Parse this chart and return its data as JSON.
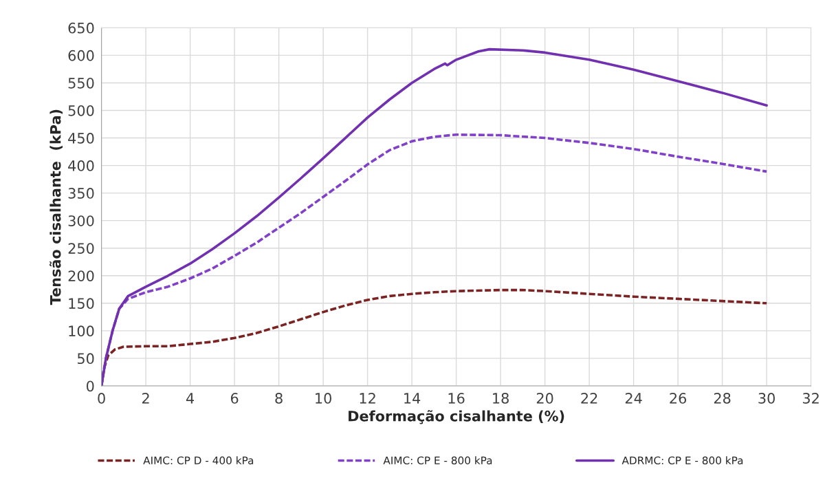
{
  "chart_data": {
    "type": "line",
    "xlabel": "Deformação cisalhante (%)",
    "ylabel": "Tensão cisalhante  (kPa)",
    "xlim": [
      0,
      32
    ],
    "xticks": [
      0,
      2,
      4,
      6,
      8,
      10,
      12,
      14,
      16,
      18,
      20,
      22,
      24,
      26,
      28,
      30,
      32
    ],
    "ylim": [
      0,
      650
    ],
    "yticks": [
      0,
      50,
      100,
      150,
      200,
      250,
      300,
      350,
      400,
      450,
      500,
      550,
      600,
      650
    ],
    "grid": true,
    "legend": "bottom",
    "marker": "none",
    "series": [
      {
        "name": "AIMC: CP D - 400 kPa",
        "color": "#7b2222",
        "line_style": "dashed",
        "x": [
          0,
          0.1,
          0.3,
          0.6,
          1,
          2,
          3,
          4,
          5,
          6,
          7,
          8,
          9,
          10,
          11,
          12,
          13,
          14,
          15,
          16,
          18,
          19,
          20,
          22,
          24,
          26,
          28,
          30
        ],
        "values": [
          0,
          30,
          55,
          66,
          71,
          72,
          72,
          76,
          80,
          87,
          96,
          108,
          121,
          134,
          146,
          156,
          163,
          167,
          170,
          172,
          174,
          174,
          172,
          167,
          162,
          158,
          154,
          150
        ]
      },
      {
        "name": "AIMC: CP E - 800 kPa",
        "color": "#8040c8",
        "line_style": "dashed",
        "x": [
          0,
          0.2,
          0.5,
          0.8,
          1.2,
          2,
          3,
          4,
          5,
          6,
          7,
          8,
          9,
          10,
          11,
          12,
          13,
          14,
          15,
          16,
          18,
          20,
          22,
          24,
          26,
          28,
          30
        ],
        "values": [
          0,
          50,
          100,
          140,
          158,
          170,
          180,
          195,
          213,
          236,
          260,
          287,
          314,
          343,
          372,
          402,
          428,
          444,
          452,
          456,
          455,
          450,
          441,
          430,
          416,
          403,
          389
        ]
      },
      {
        "name": "ADRMC: CP E - 800 kPa",
        "color": "#7030b0",
        "line_style": "solid",
        "x": [
          0,
          0.2,
          0.5,
          0.8,
          1.2,
          2,
          3,
          4,
          5,
          6,
          7,
          8,
          9,
          10,
          11,
          12,
          13,
          14,
          15,
          15.5,
          15.6,
          16,
          17,
          17.5,
          19,
          20,
          22,
          24,
          26,
          28,
          30
        ],
        "values": [
          0,
          50,
          100,
          140,
          163,
          180,
          200,
          222,
          248,
          277,
          308,
          342,
          377,
          413,
          450,
          487,
          520,
          550,
          575,
          585,
          582,
          592,
          607,
          611,
          609,
          605,
          592,
          574,
          553,
          532,
          509
        ]
      }
    ]
  }
}
